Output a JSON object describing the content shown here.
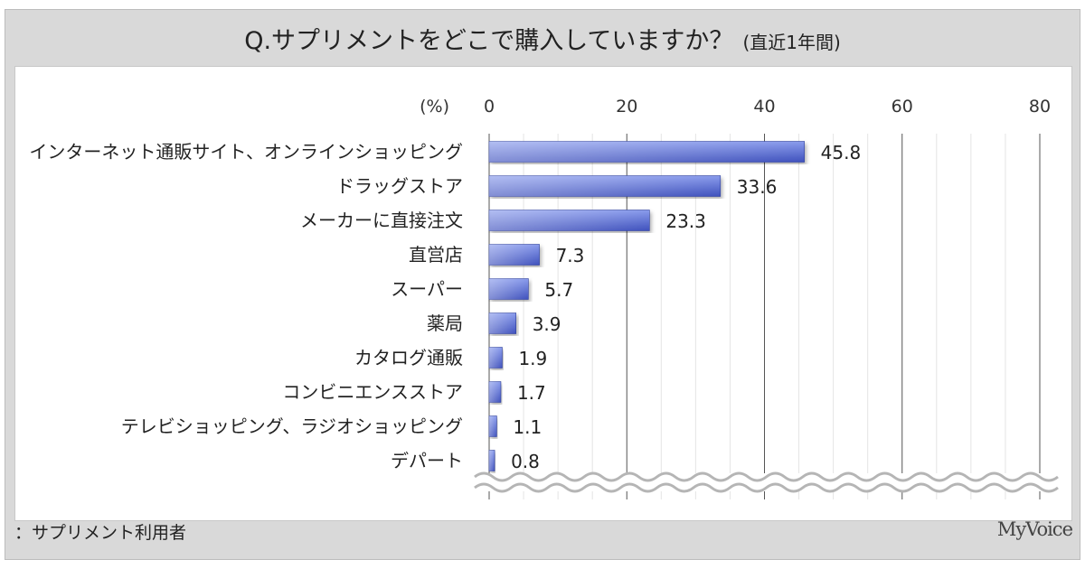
{
  "chart_data": {
    "type": "bar",
    "orientation": "horizontal",
    "title": "Q.サプリメントをどこで購入していますか？",
    "subtitle": "(直近1年間)",
    "unit_label": "(%)",
    "categories": [
      "インターネット通販サイト、オンラインショッピング",
      "ドラッグストア",
      "メーカーに直接注文",
      "直営店",
      "スーパー",
      "薬局",
      "カタログ通販",
      "コンビニエンスストア",
      "テレビショッピング、ラジオショッピング",
      "デパート"
    ],
    "values": [
      45.8,
      33.6,
      23.3,
      7.3,
      5.7,
      3.9,
      1.9,
      1.7,
      1.1,
      0.8
    ],
    "value_labels": [
      "45.8",
      "33.6",
      "23.3",
      "7.3",
      "5.7",
      "3.9",
      "1.9",
      "1.7",
      "1.1",
      "0.8"
    ],
    "xlim": [
      0,
      80
    ],
    "ticks": [
      "0",
      "20",
      "40",
      "60",
      "80"
    ],
    "tick_values": [
      0,
      20,
      40,
      60,
      80
    ],
    "minor_grid_step": 5,
    "grid": true,
    "axis_break": true,
    "bar_color_light": "#8a9cec",
    "bar_color_dark": "#3f51bd"
  },
  "footer": {
    "note": "：サプリメント利用者",
    "logo": "MyVoice"
  }
}
